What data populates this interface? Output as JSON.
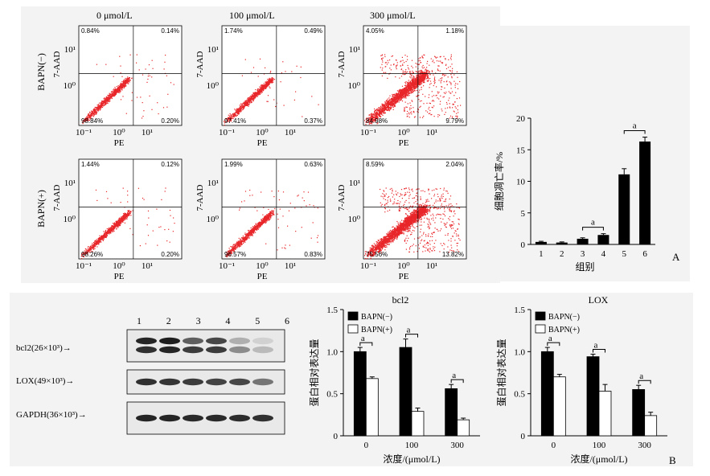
{
  "flow": {
    "column_titles": [
      "0 μmol/L",
      "100 μmol/L",
      "300 μmol/L"
    ],
    "row_labels": [
      "BAPN(−)",
      "BAPN(+)"
    ],
    "x_axis_label": "PE",
    "y_axis_label": "7-AAD",
    "x_ticks": [
      "10⁻¹",
      "10⁰",
      "10¹"
    ],
    "y_ticks": [
      "10¹",
      "10⁰"
    ],
    "quadrants": [
      [
        {
          "ul": "0.84%",
          "ur": "0.14%",
          "ll": "98.84%",
          "lr": "0.20%"
        },
        {
          "ul": "1.74%",
          "ur": "0.49%",
          "ll": "97.41%",
          "lr": "0.37%"
        },
        {
          "ul": "4.05%",
          "ur": "1.18%",
          "ll": "84.98%",
          "lr": "9.79%"
        }
      ],
      [
        {
          "ul": "1.44%",
          "ur": "0.12%",
          "ll": "98.26%",
          "lr": "0.20%"
        },
        {
          "ul": "1.99%",
          "ur": "0.63%",
          "ll": "96.57%",
          "lr": "0.83%"
        },
        {
          "ul": "8.59%",
          "ur": "2.04%",
          "ll": "75.56%",
          "lr": "13.82%"
        }
      ]
    ]
  },
  "western": {
    "lane_labels": [
      "1",
      "2",
      "3",
      "4",
      "5",
      "6"
    ],
    "bands": [
      "bcl2(26×10³)→",
      "LOX(49×10³)→",
      "GAPDH(36×10³)→"
    ]
  },
  "panel_labels": {
    "a": "A",
    "b": "B"
  },
  "chart_data": [
    {
      "type": "bar",
      "title": "",
      "xlabel": "组别",
      "ylabel": "细胞凋亡率/%",
      "categories": [
        "1",
        "2",
        "3",
        "4",
        "5",
        "6"
      ],
      "values": [
        0.4,
        0.3,
        0.9,
        1.5,
        11.1,
        16.3
      ],
      "errors": [
        0.1,
        0.1,
        0.15,
        0.2,
        0.9,
        0.7
      ],
      "ylim": [
        0,
        20
      ],
      "yticks": [
        0,
        5,
        10,
        15,
        20
      ],
      "annotations": [
        {
          "text": "a",
          "between": [
            "3",
            "4"
          ]
        },
        {
          "text": "a",
          "between": [
            "5",
            "6"
          ]
        }
      ],
      "color": "#000000"
    },
    {
      "type": "bar",
      "title": "bcl2",
      "xlabel": "浓度/(μmol/L)",
      "ylabel": "蛋白相对表达量",
      "categories": [
        "0",
        "100",
        "300"
      ],
      "series": [
        {
          "name": "BAPN(−)",
          "values": [
            1.0,
            1.05,
            0.56
          ],
          "errors": [
            0.05,
            0.1,
            0.05
          ],
          "color": "#000000"
        },
        {
          "name": "BAPN(+)",
          "values": [
            0.68,
            0.29,
            0.19
          ],
          "errors": [
            0.02,
            0.04,
            0.02
          ],
          "color": "#ffffff"
        }
      ],
      "ylim": [
        0,
        1.5
      ],
      "yticks": [
        "0",
        "0.5",
        "1.0",
        "1.5"
      ],
      "annotations": [
        "a",
        "a",
        "a"
      ],
      "legend": "top-left"
    },
    {
      "type": "bar",
      "title": "LOX",
      "xlabel": "浓度/(μmol/L)",
      "ylabel": "蛋白相对表达量",
      "categories": [
        "0",
        "100",
        "300"
      ],
      "series": [
        {
          "name": "BAPN(−)",
          "values": [
            1.0,
            0.94,
            0.55
          ],
          "errors": [
            0.05,
            0.03,
            0.05
          ],
          "color": "#000000"
        },
        {
          "name": "BAPN(+)",
          "values": [
            0.7,
            0.53,
            0.24
          ],
          "errors": [
            0.03,
            0.08,
            0.04
          ],
          "color": "#ffffff"
        }
      ],
      "ylim": [
        0,
        1.5
      ],
      "yticks": [
        "0",
        "0.5",
        "1.0",
        "1.5"
      ],
      "annotations": [
        "a",
        "a",
        "a"
      ],
      "legend": "top-left"
    }
  ]
}
